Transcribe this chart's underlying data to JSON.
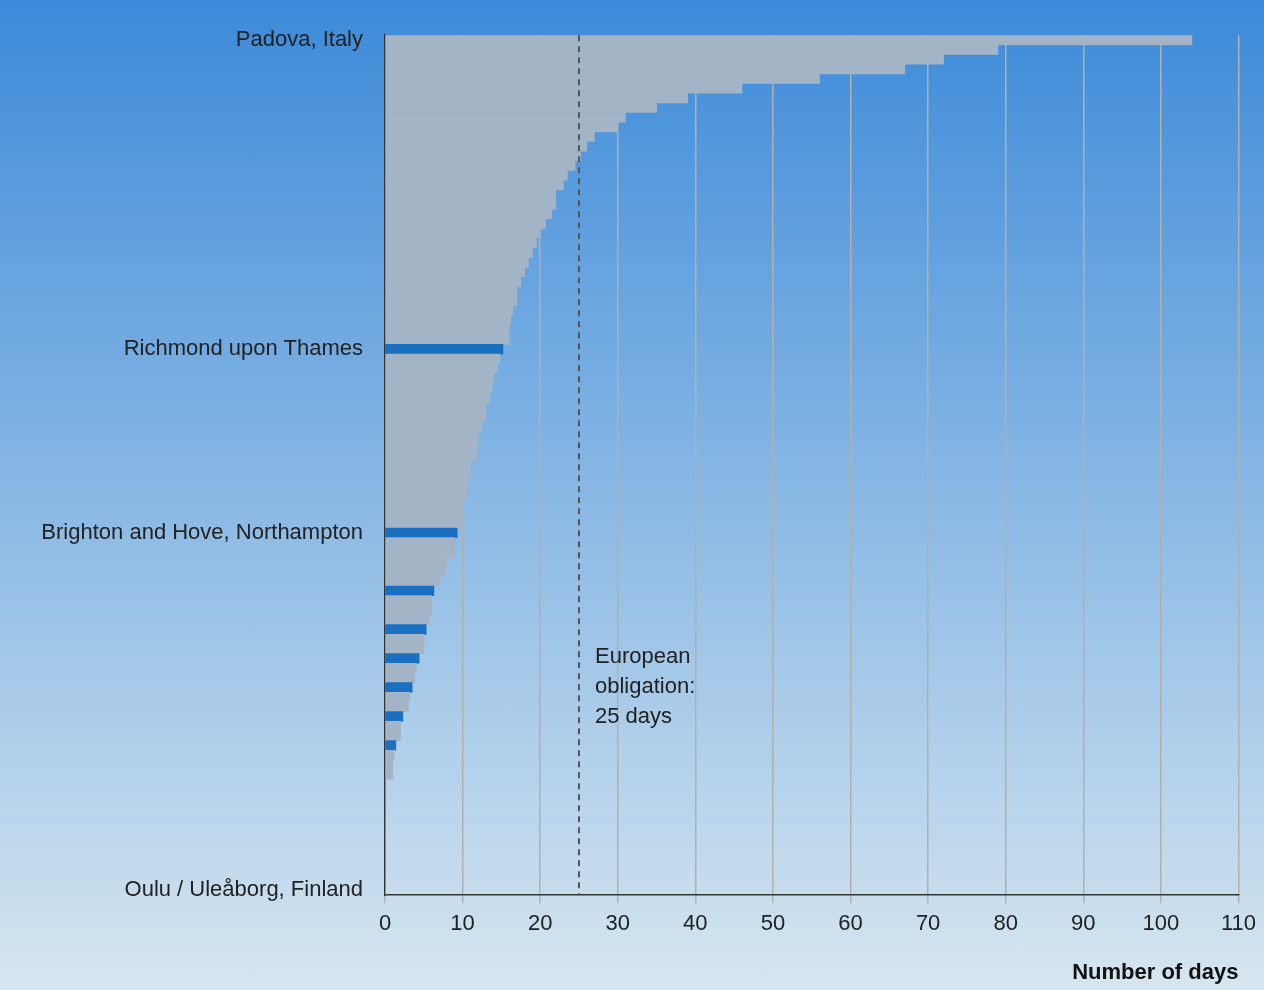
{
  "chart_data": {
    "type": "bar",
    "orientation": "horizontal",
    "categories": [
      "Padova, Italy",
      null,
      null,
      null,
      null,
      null,
      null,
      null,
      null,
      null,
      null,
      null,
      null,
      null,
      null,
      null,
      null,
      null,
      null,
      null,
      null,
      null,
      null,
      null,
      null,
      null,
      null,
      null,
      null,
      null,
      null,
      null,
      "Richmond upon Thames",
      null,
      null,
      null,
      null,
      null,
      null,
      null,
      null,
      null,
      null,
      null,
      null,
      null,
      null,
      null,
      null,
      null,
      null,
      "Brighton and Hove, Northampton",
      null,
      null,
      null,
      null,
      null,
      null,
      null,
      null,
      null,
      null,
      null,
      null,
      null,
      null,
      null,
      null,
      null,
      null,
      null,
      null,
      null,
      null,
      null,
      null,
      null,
      null,
      null,
      null,
      null,
      null,
      null,
      null,
      null,
      null,
      null,
      null,
      "Oulu / Uleåborg, Finland"
    ],
    "values": [
      104,
      79,
      72,
      67,
      56,
      46,
      39,
      35,
      31,
      30,
      27,
      26,
      25.2,
      24.5,
      23.5,
      23,
      22,
      22,
      21.5,
      20.7,
      20,
      19.5,
      19,
      18.5,
      18,
      17.5,
      17,
      17,
      16.5,
      16.2,
      16,
      16,
      15.2,
      14.8,
      14.5,
      14,
      13.8,
      13.5,
      13,
      13,
      12.5,
      12,
      12,
      11.8,
      11,
      11,
      10.7,
      10.5,
      10,
      10,
      9.8,
      9.3,
      9,
      9,
      8,
      7.7,
      7,
      6.3,
      6,
      6,
      5.7,
      5.3,
      5,
      5,
      4.4,
      4,
      3.8,
      3.5,
      3.2,
      3,
      2.3,
      2,
      2,
      1.4,
      1.2,
      1,
      1,
      0,
      0,
      0,
      0,
      0,
      0,
      0,
      0,
      0,
      0,
      0,
      0
    ],
    "colors": [
      "#a3b4c6",
      "#a3b4c6",
      "#a3b4c6",
      "#a3b4c6",
      "#a3b4c6",
      "#a3b4c6",
      "#a3b4c6",
      "#a3b4c6",
      "#a3b4c6",
      "#a3b4c6",
      "#a3b4c6",
      "#a3b4c6",
      "#a3b4c6",
      "#a3b4c6",
      "#a3b4c6",
      "#a3b4c6",
      "#a3b4c6",
      "#a3b4c6",
      "#a3b4c6",
      "#a3b4c6",
      "#a3b4c6",
      "#a3b4c6",
      "#a3b4c6",
      "#a3b4c6",
      "#a3b4c6",
      "#a3b4c6",
      "#a3b4c6",
      "#a3b4c6",
      "#a3b4c6",
      "#a3b4c6",
      "#a3b4c6",
      "#a3b4c6",
      "#1a6fc0",
      "#a3b4c6",
      "#a3b4c6",
      "#a3b4c6",
      "#a3b4c6",
      "#a3b4c6",
      "#a3b4c6",
      "#a3b4c6",
      "#a3b4c6",
      "#a3b4c6",
      "#a3b4c6",
      "#a3b4c6",
      "#a3b4c6",
      "#a3b4c6",
      "#a3b4c6",
      "#a3b4c6",
      "#a3b4c6",
      "#a3b4c6",
      "#a3b4c6",
      "#1a6fc0",
      "#a3b4c6",
      "#a3b4c6",
      "#a3b4c6",
      "#a3b4c6",
      "#a3b4c6",
      "#1a6fc0",
      "#a3b4c6",
      "#a3b4c6",
      "#a3b4c6",
      "#1a6fc0",
      "#a3b4c6",
      "#a3b4c6",
      "#1a6fc0",
      "#a3b4c6",
      "#a3b4c6",
      "#1a6fc0",
      "#a3b4c6",
      "#a3b4c6",
      "#1a6fc0",
      "#a3b4c6",
      "#a3b4c6",
      "#1a6fc0",
      "#a3b4c6",
      "#a3b4c6",
      "#a3b4c6",
      "#a3b4c6",
      "#a3b4c6",
      "#a3b4c6",
      "#a3b4c6",
      "#a3b4c6",
      "#a3b4c6",
      "#a3b4c6",
      "#a3b4c6",
      "#a3b4c6",
      "#a3b4c6",
      "#a3b4c6",
      "#a3b4c6"
    ],
    "xlabel": "Number of days",
    "xlim": [
      0,
      110
    ],
    "xticks": [
      0,
      10,
      20,
      30,
      40,
      50,
      60,
      70,
      80,
      90,
      100,
      110
    ],
    "grid": "x",
    "legend": false,
    "ref_lines": [
      {
        "axis": "x",
        "value": 25,
        "label": "European obligation: 25 days",
        "line_style": "dashed",
        "color": "#555555"
      }
    ]
  }
}
